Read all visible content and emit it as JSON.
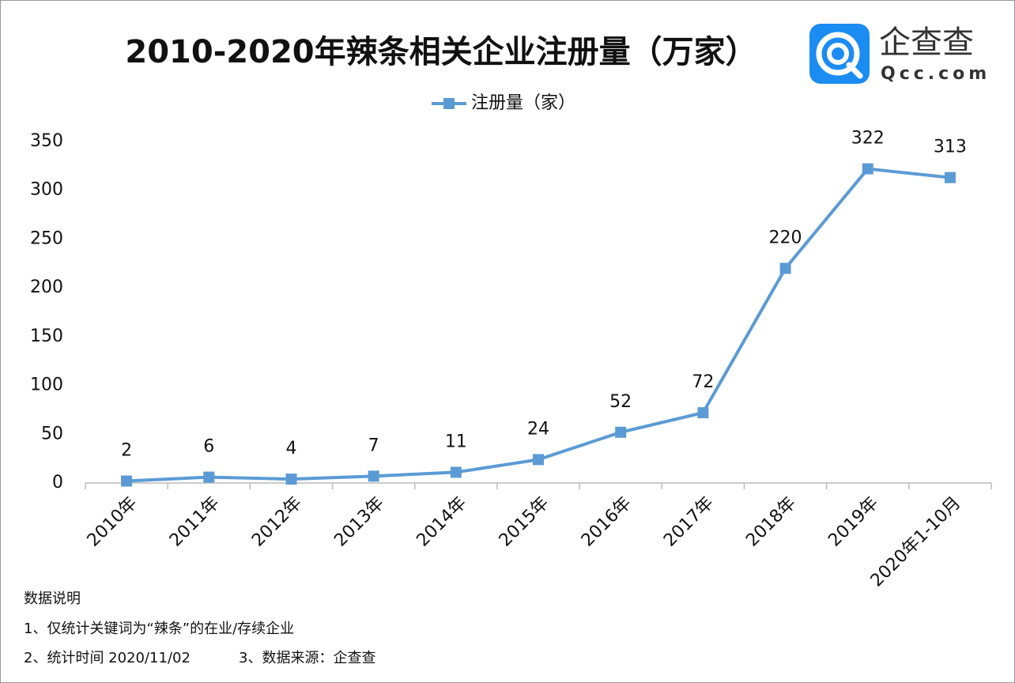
{
  "chart_data": {
    "type": "line",
    "title": "2010-2020年辣条相关企业注册量（万家）",
    "logo_text": "企查查",
    "logo_subtext": "Qcc.com",
    "categories": [
      "2010年",
      "2011年",
      "2012年",
      "2013年",
      "2014年",
      "2015年",
      "2016年",
      "2017年",
      "2018年",
      "2019年",
      "2020年1-10月"
    ],
    "series": [
      {
        "name": "注册量（家）",
        "color": "#5b9bd5",
        "values": [
          2,
          6,
          4,
          7,
          11,
          24,
          52,
          72,
          220,
          322,
          313
        ]
      }
    ],
    "ylim": [
      0,
      350
    ],
    "yticks": [
      0,
      50,
      100,
      150,
      200,
      250,
      300,
      350
    ],
    "grid": false,
    "legend": "top",
    "notes": [
      "数据说明",
      "1、仅统计关键词为“辣条”的在业/存续企业",
      "2、统计时间 2020/11/02",
      "3、数据来源：企查查"
    ]
  }
}
